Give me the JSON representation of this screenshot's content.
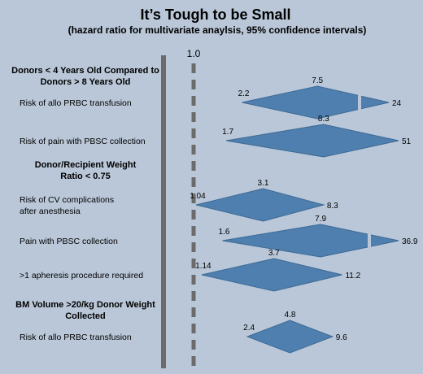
{
  "chart_data": {
    "type": "forest",
    "title": "It’s Tough to be Small",
    "subtitle": "(hazard ratio for multivariate anaylsis, 95% confidence intervals)",
    "reference_line": "1.0",
    "colors": {
      "background": "#b9c7d8",
      "diamond": "#4f7fae",
      "diamond_stroke": "#3d6a96",
      "left_bar": "#6b6b6b",
      "reference": "#6b6b6b"
    },
    "groups": [
      {
        "heading_lines": [
          "Donors < 4 Years Old Compared to",
          "Donors > 8 Years Old"
        ],
        "rows": [
          {
            "label_lines": [
              "Risk of allo PRBC transfusion"
            ],
            "low": "2.2",
            "point": "7.5",
            "high": "24",
            "broken": true
          },
          {
            "label_lines": [
              "Risk of pain with PBSC collection"
            ],
            "low": "1.7",
            "point": "8.3",
            "high": "51",
            "broken": false
          }
        ]
      },
      {
        "heading_lines": [
          "Donor/Recipient Weight",
          "Ratio < 0.75"
        ],
        "rows": [
          {
            "label_lines": [
              "Risk of CV complications",
              "after anesthesia"
            ],
            "low": "1.04",
            "point": "3.1",
            "high": "8.3",
            "broken": false
          },
          {
            "label_lines": [
              "Pain with PBSC collection"
            ],
            "low": "1.6",
            "point": "7.9",
            "high": "36.9",
            "broken": true
          },
          {
            "label_lines": [
              ">1 apheresis procedure required"
            ],
            "low": "1.14",
            "point": "3.7",
            "high": "11.2",
            "broken": false
          }
        ]
      },
      {
        "heading_lines": [
          "BM Volume >20/kg Donor Weight",
          "Collected"
        ],
        "rows": [
          {
            "label_lines": [
              "Risk of allo PRBC transfusion"
            ],
            "low": "2.4",
            "point": "4.8",
            "high": "9.6",
            "broken": false
          }
        ]
      }
    ]
  }
}
